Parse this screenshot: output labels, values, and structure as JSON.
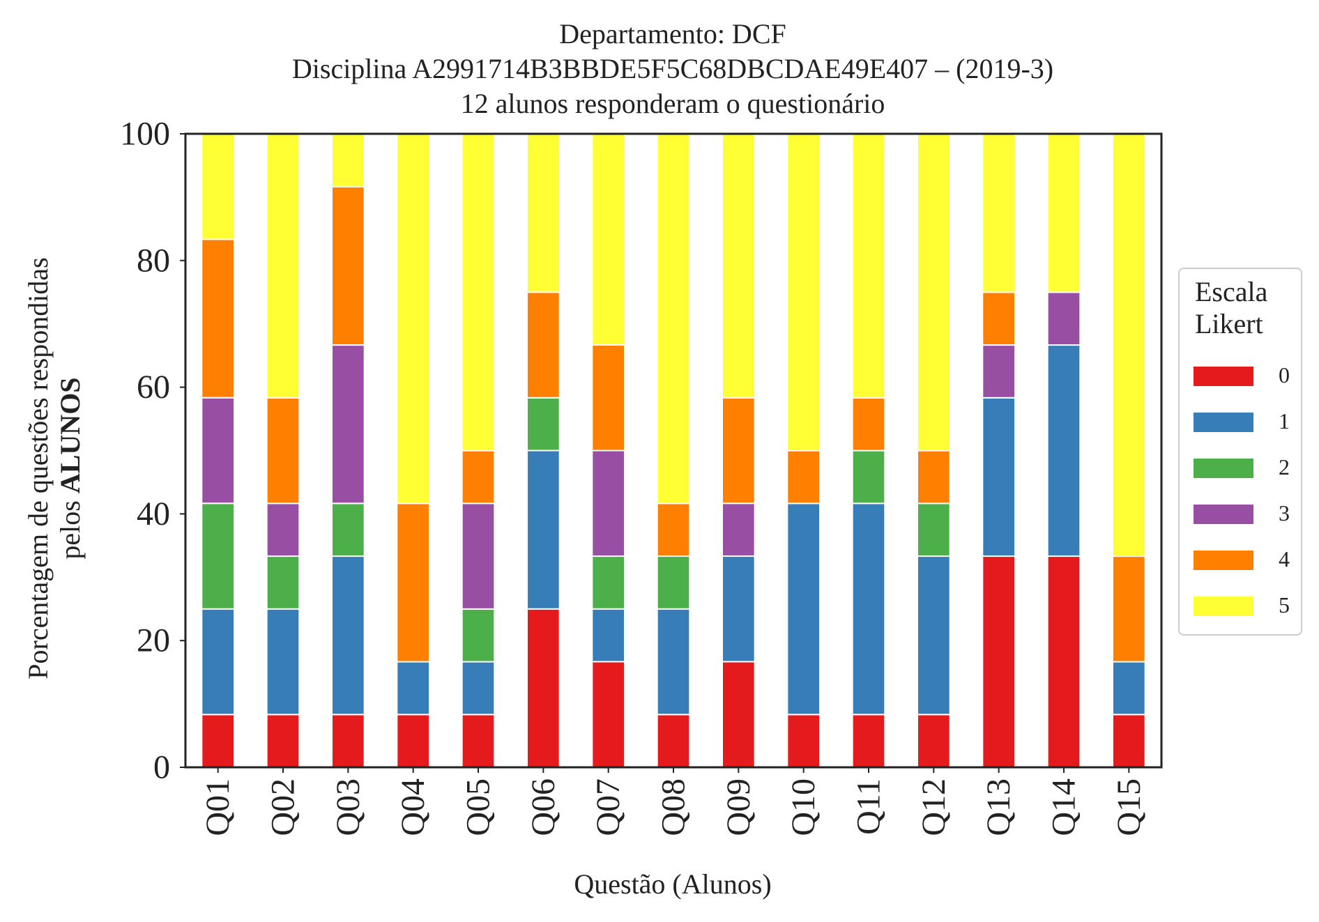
{
  "chart_data": {
    "type": "bar",
    "stacked": true,
    "title": [
      "Departamento: DCF",
      "Disciplina A2991714B3BBDE5F5C68DBCDAE49E407 – (2019-3)",
      "12 alunos responderam o questionário"
    ],
    "xlabel": "Questão (Alunos)",
    "ylabel": [
      "Porcentagem de questões respondidas",
      "pelos",
      "ALUNOS"
    ],
    "ylim": [
      0,
      100
    ],
    "yticks": [
      "0",
      "20",
      "40",
      "60",
      "80",
      "100"
    ],
    "categories": [
      "Q01",
      "Q02",
      "Q03",
      "Q04",
      "Q05",
      "Q06",
      "Q07",
      "Q08",
      "Q09",
      "Q10",
      "Q11",
      "Q12",
      "Q13",
      "Q14",
      "Q15"
    ],
    "legend": {
      "title": [
        "Escala",
        "Likert"
      ],
      "placement": "right"
    },
    "grid": false,
    "series": [
      {
        "name": "0",
        "color": "#e41a1c",
        "values": [
          8.33,
          8.33,
          8.33,
          8.33,
          8.33,
          25,
          16.67,
          8.33,
          16.67,
          8.33,
          8.33,
          8.33,
          33.33,
          33.33,
          8.33
        ]
      },
      {
        "name": "1",
        "color": "#377eb8",
        "values": [
          16.67,
          16.67,
          25,
          8.33,
          8.33,
          25,
          8.33,
          16.67,
          16.67,
          33.33,
          33.33,
          25,
          25,
          33.33,
          8.33
        ]
      },
      {
        "name": "2",
        "color": "#4daf4a",
        "values": [
          16.67,
          8.33,
          8.33,
          0,
          8.33,
          8.33,
          8.33,
          8.33,
          0,
          0,
          8.33,
          8.33,
          0,
          0,
          0
        ]
      },
      {
        "name": "3",
        "color": "#984ea3",
        "values": [
          16.67,
          8.33,
          25,
          0,
          16.67,
          0,
          16.67,
          0,
          8.33,
          0,
          0,
          0,
          8.33,
          8.33,
          0
        ]
      },
      {
        "name": "4",
        "color": "#ff7f00",
        "values": [
          25,
          16.67,
          25,
          25,
          8.33,
          16.67,
          16.67,
          8.33,
          16.67,
          8.33,
          8.33,
          8.33,
          8.33,
          0,
          16.67
        ]
      },
      {
        "name": "5",
        "color": "#ffff33",
        "values": [
          16.67,
          41.67,
          8.33,
          58.33,
          50,
          25,
          33.33,
          58.33,
          41.67,
          50,
          41.67,
          50,
          25,
          25,
          66.67
        ]
      }
    ]
  }
}
